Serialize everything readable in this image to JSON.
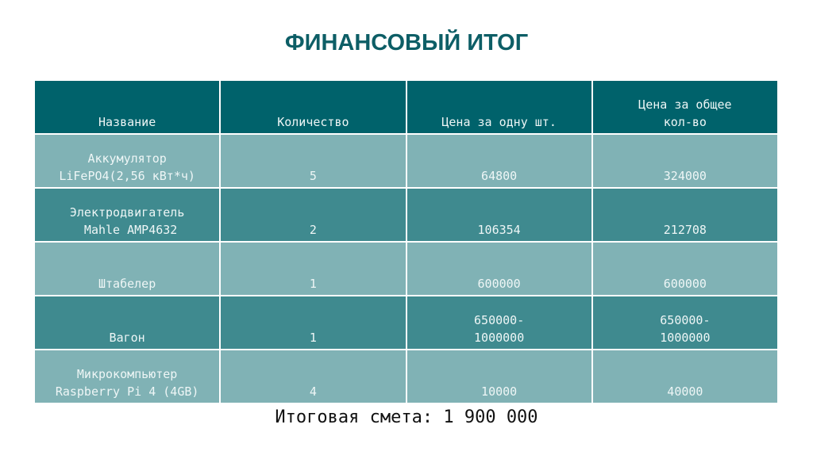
{
  "title": "ФИНАНСОВЫЙ ИТОГ",
  "colors": {
    "header": "#00626b",
    "row_light": "#80b2b5",
    "row_dark": "#3f8a8f",
    "title": "#0d5e66"
  },
  "table": {
    "headers": [
      [
        "Название"
      ],
      [
        "Количество"
      ],
      [
        "Цена за одну шт."
      ],
      [
        "Цена за общее",
        "кол-во"
      ]
    ],
    "rows": [
      {
        "name": [
          "Аккумулятор",
          "LiFePO4(2,56 кВт*ч)"
        ],
        "qty": "5",
        "unit_price": [
          "64800"
        ],
        "total": [
          "324000"
        ]
      },
      {
        "name": [
          "Электродвигатель",
          " Mahle AMP4632"
        ],
        "qty": "2",
        "unit_price": [
          "106354"
        ],
        "total": [
          "212708"
        ]
      },
      {
        "name": [
          "Штабелер"
        ],
        "qty": "1",
        "unit_price": [
          "600000"
        ],
        "total": [
          "600000"
        ]
      },
      {
        "name": [
          "Вагон"
        ],
        "qty": "1",
        "unit_price": [
          "650000-",
          "1000000"
        ],
        "total": [
          "650000-",
          "1000000"
        ]
      },
      {
        "name": [
          "Микрокомпьютер",
          "Raspberry Pi 4 (4GB)"
        ],
        "qty": "4",
        "unit_price": [
          "10000"
        ],
        "total": [
          "40000"
        ]
      }
    ]
  },
  "total": "Итоговая смета: 1 900 000"
}
